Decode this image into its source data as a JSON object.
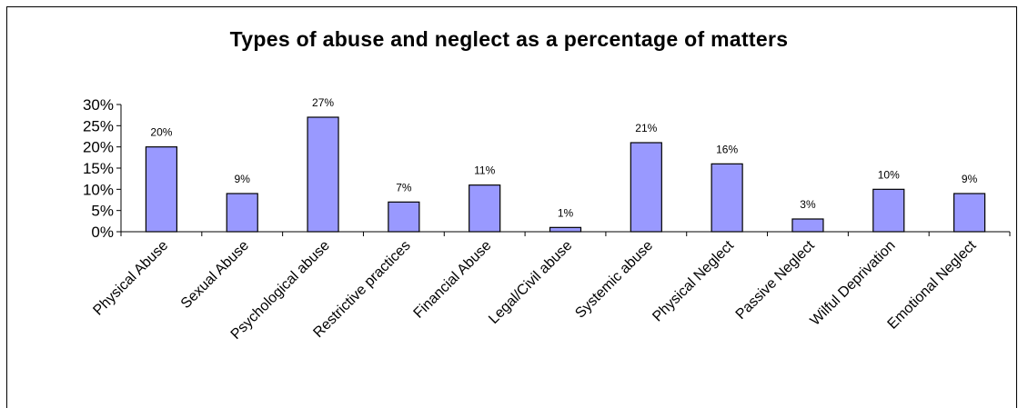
{
  "chart_data": {
    "type": "bar",
    "title": "Types of abuse and neglect as a percentage of matters",
    "xlabel": "",
    "ylabel": "",
    "ylim": [
      0,
      30
    ],
    "y_ticks": [
      "0%",
      "5%",
      "10%",
      "15%",
      "20%",
      "25%",
      "30%"
    ],
    "categories": [
      "Physical Abuse",
      "Sexual Abuse",
      "Psychological abuse",
      "Restrictive practices",
      "Financial Abuse",
      "Legal/Civil abuse",
      "Systemic abuse",
      "Physical Neglect",
      "Passive Neglect",
      "Wilful Deprivation",
      "Emotional Neglect"
    ],
    "values": [
      20,
      9,
      27,
      7,
      11,
      1,
      21,
      16,
      3,
      10,
      9
    ],
    "data_labels": [
      "20%",
      "9%",
      "27%",
      "7%",
      "11%",
      "1%",
      "21%",
      "16%",
      "3%",
      "10%",
      "9%"
    ],
    "grid": false,
    "legend": "none",
    "colors": {
      "bar_fill": "#9999ff",
      "bar_stroke": "#000000"
    }
  }
}
